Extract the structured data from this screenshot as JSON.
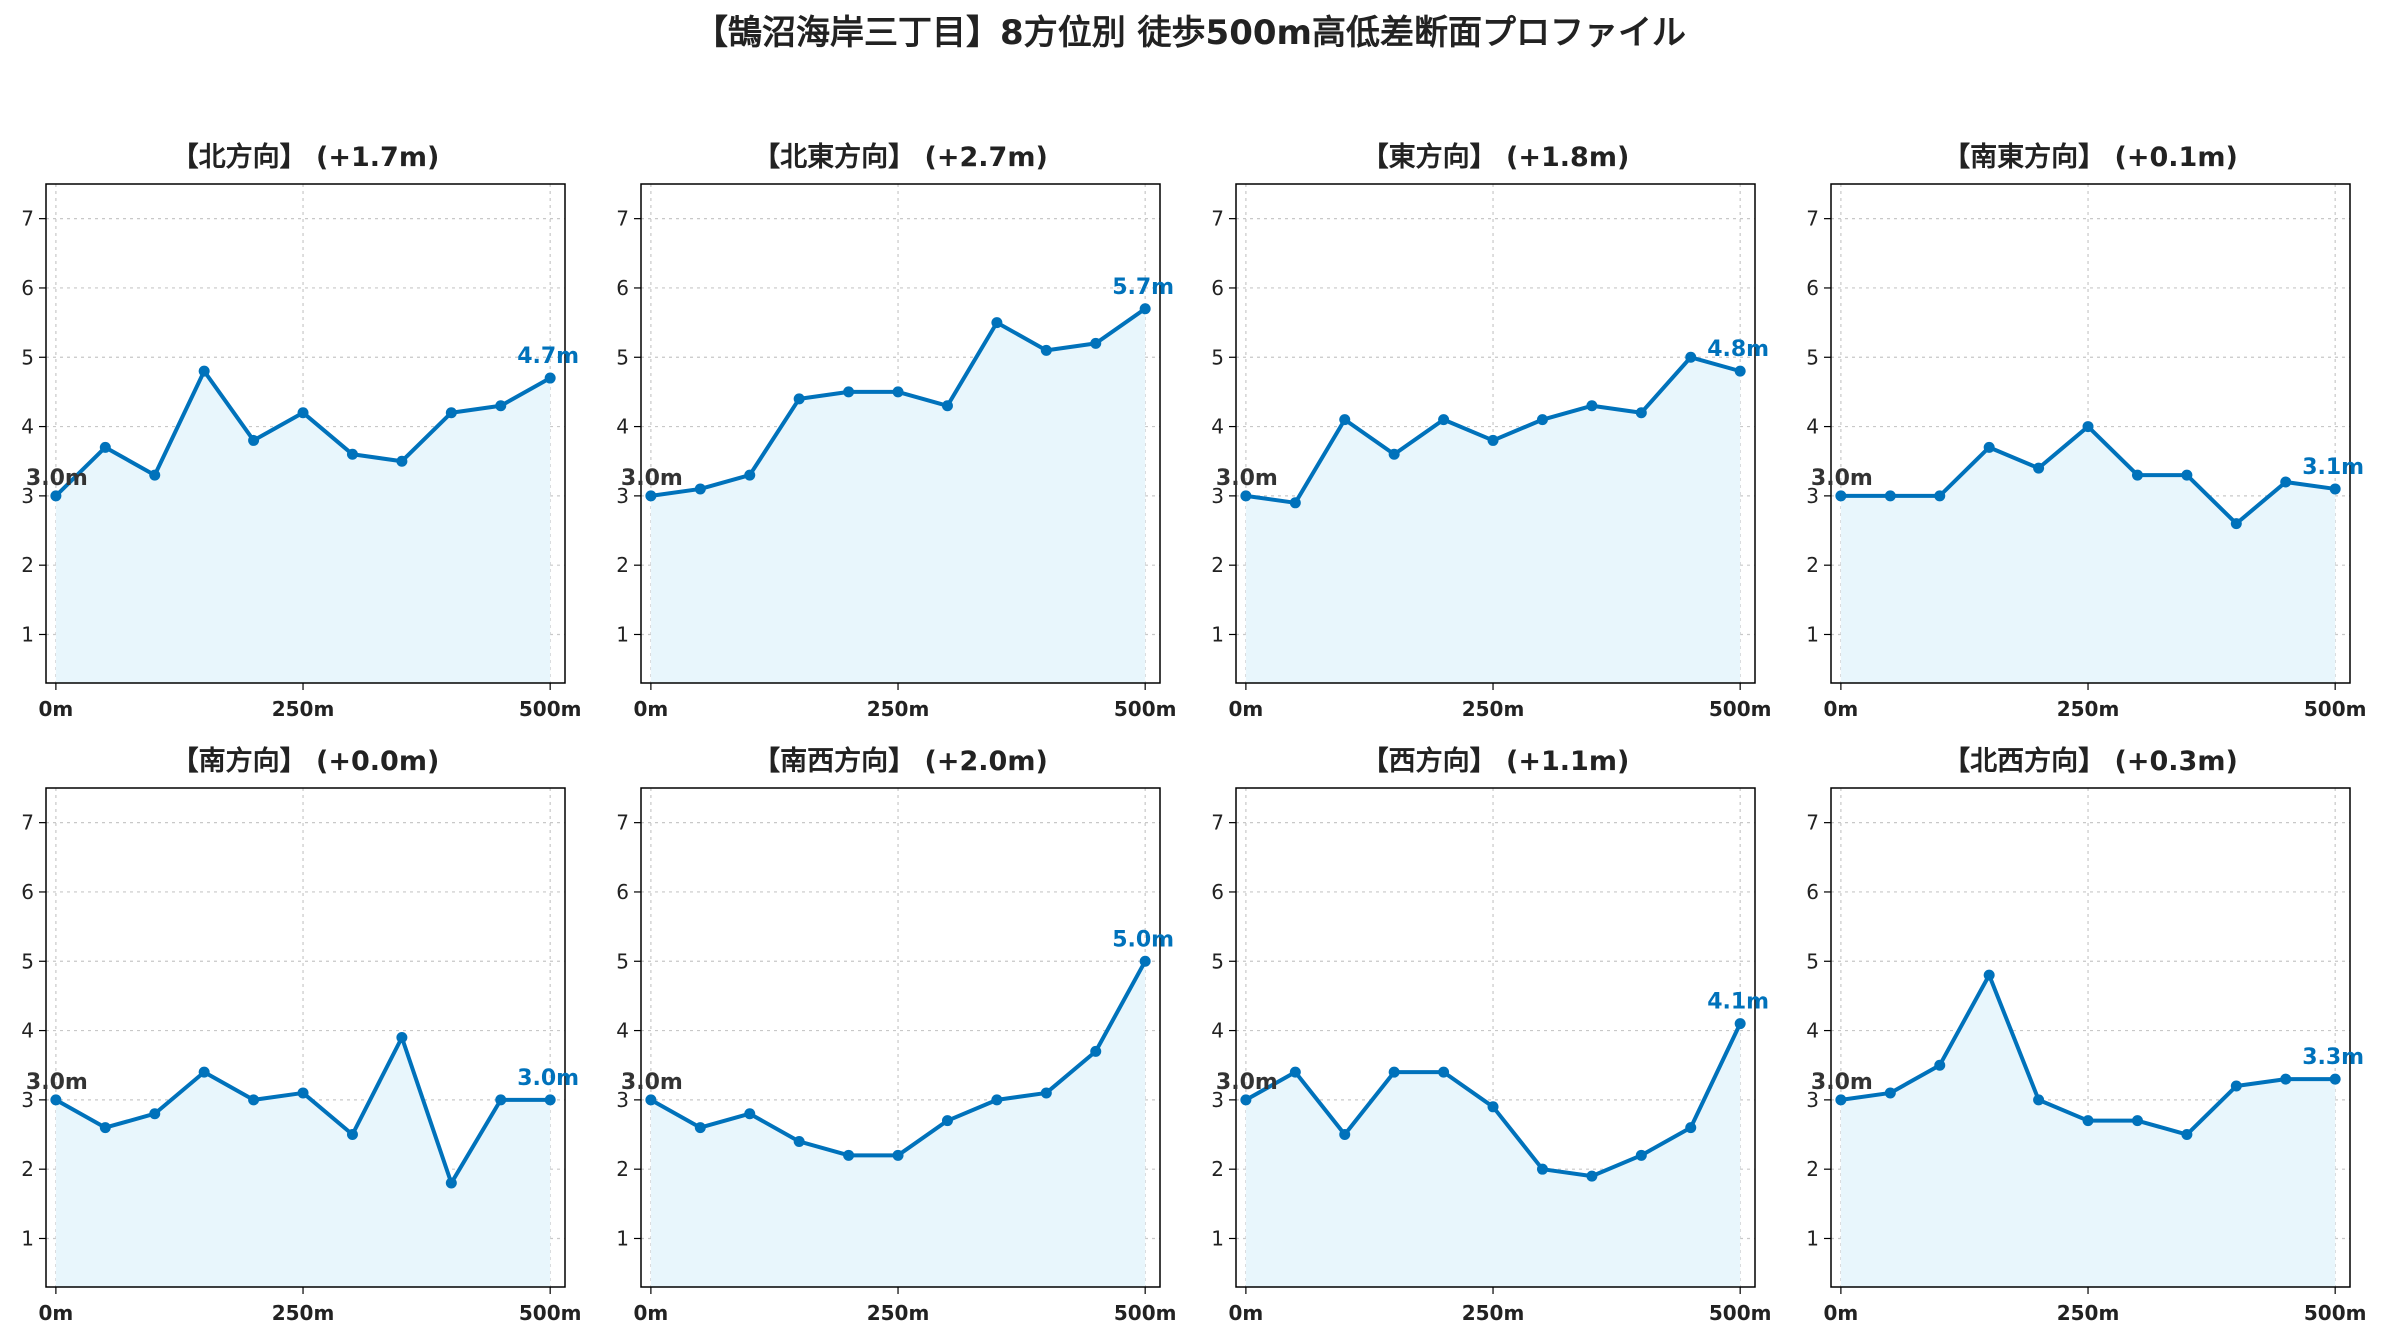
{
  "title": "【鵠沼海岸三丁目】8方位別 徒歩500m高低差断面プロファイル",
  "colors": {
    "line": "#0072BB",
    "fill": "#E8F6FC",
    "grid": "#c8c8c8",
    "start_label": "#333333",
    "end_label": "#0072BB"
  },
  "chart_data": [
    {
      "type": "line",
      "title": "【北方向】 (+1.7m)",
      "x": [
        0,
        50,
        100,
        150,
        200,
        250,
        300,
        350,
        400,
        450,
        500
      ],
      "xtick_values": [
        0,
        250,
        500
      ],
      "xtick_labels": [
        "0m",
        "250m",
        "500m"
      ],
      "ytick_values": [
        1,
        2,
        3,
        4,
        5,
        6,
        7
      ],
      "ylim": [
        0.3,
        7.5
      ],
      "xlim": [
        -10,
        515
      ],
      "grid": true,
      "values": [
        3.0,
        3.7,
        3.3,
        4.8,
        3.8,
        4.2,
        3.6,
        3.5,
        4.2,
        4.3,
        4.7
      ],
      "start_label": "3.0m",
      "end_label": "4.7m"
    },
    {
      "type": "line",
      "title": "【北東方向】 (+2.7m)",
      "x": [
        0,
        50,
        100,
        150,
        200,
        250,
        300,
        350,
        400,
        450,
        500
      ],
      "xtick_values": [
        0,
        250,
        500
      ],
      "xtick_labels": [
        "0m",
        "250m",
        "500m"
      ],
      "ytick_values": [
        1,
        2,
        3,
        4,
        5,
        6,
        7
      ],
      "ylim": [
        0.3,
        7.5
      ],
      "xlim": [
        -10,
        515
      ],
      "grid": true,
      "values": [
        3.0,
        3.1,
        3.3,
        4.4,
        4.5,
        4.5,
        4.3,
        5.5,
        5.1,
        5.2,
        5.7
      ],
      "start_label": "3.0m",
      "end_label": "5.7m"
    },
    {
      "type": "line",
      "title": "【東方向】 (+1.8m)",
      "x": [
        0,
        50,
        100,
        150,
        200,
        250,
        300,
        350,
        400,
        450,
        500
      ],
      "xtick_values": [
        0,
        250,
        500
      ],
      "xtick_labels": [
        "0m",
        "250m",
        "500m"
      ],
      "ytick_values": [
        1,
        2,
        3,
        4,
        5,
        6,
        7
      ],
      "ylim": [
        0.3,
        7.5
      ],
      "xlim": [
        -10,
        515
      ],
      "grid": true,
      "values": [
        3.0,
        2.9,
        4.1,
        3.6,
        4.1,
        3.8,
        4.1,
        4.3,
        4.2,
        5.0,
        4.8
      ],
      "start_label": "3.0m",
      "end_label": "4.8m"
    },
    {
      "type": "line",
      "title": "【南東方向】 (+0.1m)",
      "x": [
        0,
        50,
        100,
        150,
        200,
        250,
        300,
        350,
        400,
        450,
        500
      ],
      "xtick_values": [
        0,
        250,
        500
      ],
      "xtick_labels": [
        "0m",
        "250m",
        "500m"
      ],
      "ytick_values": [
        1,
        2,
        3,
        4,
        5,
        6,
        7
      ],
      "ylim": [
        0.3,
        7.5
      ],
      "xlim": [
        -10,
        515
      ],
      "grid": true,
      "values": [
        3.0,
        3.0,
        3.0,
        3.7,
        3.4,
        4.0,
        3.3,
        3.3,
        2.6,
        3.2,
        3.1
      ],
      "start_label": "3.0m",
      "end_label": "3.1m"
    },
    {
      "type": "line",
      "title": "【南方向】 (+0.0m)",
      "x": [
        0,
        50,
        100,
        150,
        200,
        250,
        300,
        350,
        400,
        450,
        500
      ],
      "xtick_values": [
        0,
        250,
        500
      ],
      "xtick_labels": [
        "0m",
        "250m",
        "500m"
      ],
      "ytick_values": [
        1,
        2,
        3,
        4,
        5,
        6,
        7
      ],
      "ylim": [
        0.3,
        7.5
      ],
      "xlim": [
        -10,
        515
      ],
      "grid": true,
      "values": [
        3.0,
        2.6,
        2.8,
        3.4,
        3.0,
        3.1,
        2.5,
        3.9,
        1.8,
        3.0,
        3.0
      ],
      "start_label": "3.0m",
      "end_label": "3.0m"
    },
    {
      "type": "line",
      "title": "【南西方向】 (+2.0m)",
      "x": [
        0,
        50,
        100,
        150,
        200,
        250,
        300,
        350,
        400,
        450,
        500
      ],
      "xtick_values": [
        0,
        250,
        500
      ],
      "xtick_labels": [
        "0m",
        "250m",
        "500m"
      ],
      "ytick_values": [
        1,
        2,
        3,
        4,
        5,
        6,
        7
      ],
      "ylim": [
        0.3,
        7.5
      ],
      "xlim": [
        -10,
        515
      ],
      "grid": true,
      "values": [
        3.0,
        2.6,
        2.8,
        2.4,
        2.2,
        2.2,
        2.7,
        3.0,
        3.1,
        3.7,
        5.0
      ],
      "start_label": "3.0m",
      "end_label": "5.0m"
    },
    {
      "type": "line",
      "title": "【西方向】 (+1.1m)",
      "x": [
        0,
        50,
        100,
        150,
        200,
        250,
        300,
        350,
        400,
        450,
        500
      ],
      "xtick_values": [
        0,
        250,
        500
      ],
      "xtick_labels": [
        "0m",
        "250m",
        "500m"
      ],
      "ytick_values": [
        1,
        2,
        3,
        4,
        5,
        6,
        7
      ],
      "ylim": [
        0.3,
        7.5
      ],
      "xlim": [
        -10,
        515
      ],
      "grid": true,
      "values": [
        3.0,
        3.4,
        2.5,
        3.4,
        3.4,
        2.9,
        2.0,
        1.9,
        2.2,
        2.6,
        4.1
      ],
      "start_label": "3.0m",
      "end_label": "4.1m"
    },
    {
      "type": "line",
      "title": "【北西方向】 (+0.3m)",
      "x": [
        0,
        50,
        100,
        150,
        200,
        250,
        300,
        350,
        400,
        450,
        500
      ],
      "xtick_values": [
        0,
        250,
        500
      ],
      "xtick_labels": [
        "0m",
        "250m",
        "500m"
      ],
      "ytick_values": [
        1,
        2,
        3,
        4,
        5,
        6,
        7
      ],
      "ylim": [
        0.3,
        7.5
      ],
      "xlim": [
        -10,
        515
      ],
      "grid": true,
      "values": [
        3.0,
        3.1,
        3.5,
        4.8,
        3.0,
        2.7,
        2.7,
        2.5,
        3.2,
        3.3,
        3.3
      ],
      "start_label": "3.0m",
      "end_label": "3.3m"
    }
  ]
}
